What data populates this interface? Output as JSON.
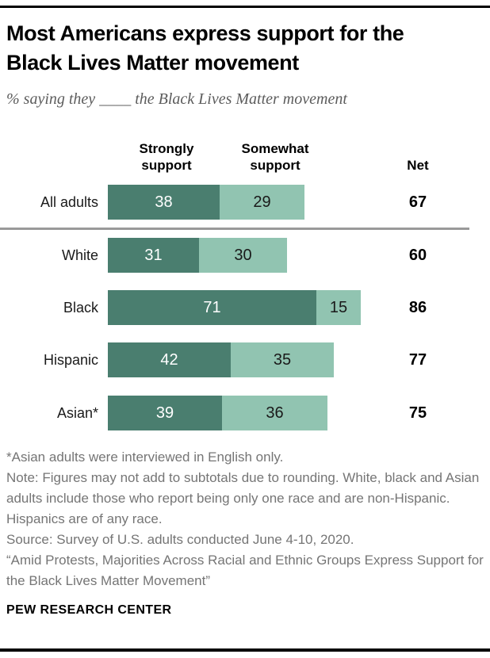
{
  "page": {
    "title_lines": [
      "Most Americans express support for the",
      "Black Lives Matter movement"
    ],
    "subtitle": "% saying they ____ the Black Lives Matter movement",
    "footer": {
      "asterisk_note": "*Asian adults were interviewed in English only.",
      "note": "Note: Figures may not add to subtotals due to rounding. White, black and Asian adults include those who report being only one race and are non-Hispanic. Hispanics are of any race.",
      "source": "Source: Survey of U.S. adults conducted June 4-10, 2020.",
      "report_title": "“Amid Protests, Majorities Across Racial and Ethnic Groups Express Support for the Black Lives Matter Movement”",
      "brand": "PEW RESEARCH CENTER"
    }
  },
  "chart_data": {
    "type": "bar",
    "orientation": "horizontal-stacked",
    "title": "Most Americans express support for the Black Lives Matter movement",
    "subtitle": "% saying they ____ the Black Lives Matter movement",
    "categories": [
      "All adults",
      "White",
      "Black",
      "Hispanic",
      "Asian*"
    ],
    "series": [
      {
        "name": "Strongly support",
        "values": [
          38,
          31,
          71,
          42,
          39
        ],
        "color": "#4a7e6f"
      },
      {
        "name": "Somewhat support",
        "values": [
          29,
          30,
          15,
          35,
          36
        ],
        "color": "#91c4b1"
      }
    ],
    "net": {
      "label": "Net",
      "values": [
        67,
        60,
        86,
        77,
        75
      ]
    },
    "xlim": [
      0,
      100
    ],
    "grid": false,
    "legend_position": "column-headers-top",
    "headers": {
      "strong": "Strongly support",
      "somewhat": "Somewhat support",
      "net": "Net"
    },
    "rows": [
      {
        "label": "All adults",
        "strong": 38,
        "somewhat": 29,
        "net": 67
      },
      {
        "label": "White",
        "strong": 31,
        "somewhat": 30,
        "net": 60
      },
      {
        "label": "Black",
        "strong": 71,
        "somewhat": 15,
        "net": 86
      },
      {
        "label": "Hispanic",
        "strong": 42,
        "somewhat": 35,
        "net": 77
      },
      {
        "label": "Asian*",
        "strong": 39,
        "somewhat": 36,
        "net": 75
      }
    ],
    "colors": {
      "strong": "#4a7e6f",
      "somewhat": "#91c4b1",
      "divider": "#999999"
    }
  }
}
